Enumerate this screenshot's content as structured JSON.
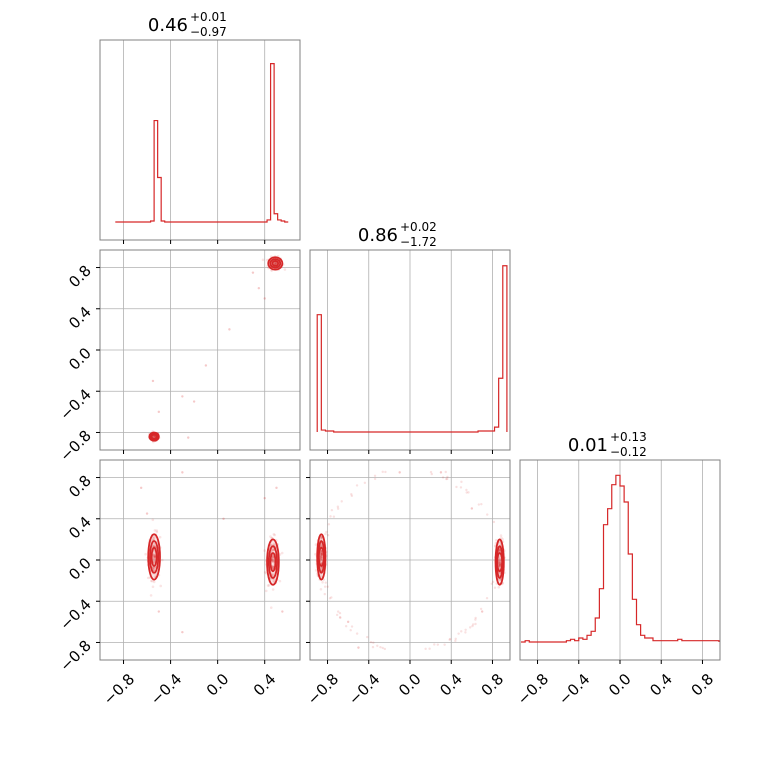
{
  "chart_data": {
    "type": "corner",
    "color": "#d62728",
    "grid": true,
    "panels": [
      {
        "kind": "histogram",
        "row": 0,
        "col": 0,
        "title": {
          "value": "0.46",
          "plus": "+0.01",
          "minus": "−0.97"
        },
        "xlim": [
          -1.0,
          0.7
        ],
        "bin_edges": [
          -0.87,
          -0.84,
          -0.81,
          -0.78,
          -0.75,
          -0.72,
          -0.69,
          -0.66,
          -0.63,
          -0.6,
          -0.57,
          -0.54,
          -0.51,
          -0.48,
          -0.45,
          -0.42,
          -0.39,
          -0.36,
          -0.33,
          -0.3,
          -0.27,
          -0.24,
          -0.21,
          -0.18,
          -0.15,
          -0.12,
          -0.09,
          -0.06,
          -0.03,
          0.0,
          0.03,
          0.06,
          0.09,
          0.12,
          0.15,
          0.18,
          0.21,
          0.24,
          0.27,
          0.3,
          0.33,
          0.36,
          0.39,
          0.42,
          0.45,
          0.48,
          0.51,
          0.54,
          0.57,
          0.6
        ],
        "counts": [
          0,
          0,
          0,
          0,
          0,
          0,
          0,
          0,
          0,
          0,
          1,
          98,
          43,
          1,
          0,
          0,
          0,
          0,
          0,
          0,
          0,
          0,
          0,
          0,
          0,
          0,
          0,
          0,
          0,
          0,
          0,
          0,
          0,
          0,
          0,
          0,
          0,
          0,
          0,
          0,
          0,
          0,
          0,
          2,
          153,
          8,
          2,
          1,
          0
        ],
        "ymax": 170
      },
      {
        "kind": "scatter",
        "row": 1,
        "col": 0,
        "xlim": [
          -1.0,
          0.7
        ],
        "ylim": [
          -0.97,
          0.97
        ],
        "clusters": [
          {
            "x": -0.54,
            "y": -0.84,
            "sx": 0.02,
            "sy": 0.02,
            "n": 90,
            "contour": true
          },
          {
            "x": 0.49,
            "y": 0.84,
            "sx": 0.03,
            "sy": 0.03,
            "n": 120,
            "contour": true
          }
        ],
        "outliers": [
          [
            -0.3,
            -0.45
          ],
          [
            -0.2,
            -0.5
          ],
          [
            0.1,
            0.2
          ],
          [
            -0.1,
            -0.15
          ],
          [
            -0.55,
            -0.3
          ],
          [
            0.4,
            0.5
          ],
          [
            0.35,
            0.6
          ],
          [
            -0.5,
            -0.6
          ],
          [
            0.3,
            0.75
          ],
          [
            -0.25,
            -0.85
          ]
        ]
      },
      {
        "kind": "histogram",
        "row": 1,
        "col": 1,
        "title": {
          "value": "0.86",
          "plus": "+0.02",
          "minus": "−1.72"
        },
        "xlim": [
          -0.97,
          0.97
        ],
        "bin_edges": [
          -0.9,
          -0.86,
          -0.82,
          -0.78,
          -0.74,
          -0.7,
          -0.66,
          -0.62,
          -0.58,
          -0.54,
          -0.5,
          -0.46,
          -0.42,
          -0.38,
          -0.34,
          -0.3,
          -0.26,
          -0.22,
          -0.18,
          -0.14,
          -0.1,
          -0.06,
          -0.02,
          0.02,
          0.06,
          0.1,
          0.14,
          0.18,
          0.22,
          0.26,
          0.3,
          0.34,
          0.38,
          0.42,
          0.46,
          0.5,
          0.54,
          0.58,
          0.62,
          0.66,
          0.7,
          0.74,
          0.78,
          0.82,
          0.86,
          0.9,
          0.94
        ],
        "counts": [
          120,
          2,
          1,
          1,
          0,
          0,
          0,
          0,
          0,
          0,
          0,
          0,
          0,
          0,
          0,
          0,
          0,
          0,
          0,
          0,
          0,
          0,
          0,
          0,
          0,
          0,
          0,
          0,
          0,
          0,
          0,
          0,
          0,
          0,
          0,
          0,
          0,
          0,
          0,
          1,
          1,
          1,
          1,
          5,
          55,
          170
        ],
        "ymax": 180
      },
      {
        "kind": "scatter",
        "row": 2,
        "col": 0,
        "xlim": [
          -1.0,
          0.7
        ],
        "ylim": [
          -0.97,
          0.97
        ],
        "clusters": [
          {
            "x": -0.54,
            "y": 0.03,
            "sx": 0.025,
            "sy": 0.11,
            "n": 170,
            "contour": true
          },
          {
            "x": 0.47,
            "y": -0.02,
            "sx": 0.025,
            "sy": 0.11,
            "n": 170,
            "contour": true
          }
        ],
        "outliers": [
          [
            -0.3,
            0.85
          ],
          [
            -0.6,
            0.45
          ],
          [
            0.5,
            0.7
          ],
          [
            0.4,
            0.6
          ],
          [
            -0.5,
            -0.5
          ],
          [
            -0.3,
            -0.7
          ],
          [
            0.05,
            0.4
          ],
          [
            -0.65,
            0.7
          ],
          [
            0.55,
            -0.5
          ]
        ]
      },
      {
        "kind": "scatter",
        "row": 2,
        "col": 1,
        "xlim": [
          -0.97,
          0.97
        ],
        "ylim": [
          -0.97,
          0.97
        ],
        "clusters": [
          {
            "x": -0.86,
            "y": 0.03,
            "sx": 0.02,
            "sy": 0.11,
            "n": 170,
            "contour": true
          },
          {
            "x": 0.87,
            "y": -0.02,
            "sx": 0.02,
            "sy": 0.11,
            "n": 170,
            "contour": true
          }
        ],
        "arcs": [
          {
            "cx": 0.0,
            "cy": 0.0,
            "r": 0.88,
            "from": 100,
            "to": 260,
            "n": 50
          },
          {
            "cx": 0.0,
            "cy": 0.0,
            "r": 0.88,
            "from": -80,
            "to": 80,
            "n": 50
          }
        ],
        "outliers": [
          [
            -0.1,
            0.85
          ],
          [
            0.3,
            0.85
          ],
          [
            0.6,
            0.5
          ],
          [
            -0.5,
            -0.85
          ],
          [
            -0.6,
            -0.6
          ],
          [
            0.7,
            -0.5
          ]
        ]
      },
      {
        "kind": "histogram",
        "row": 2,
        "col": 2,
        "title": {
          "value": "0.01",
          "plus": "+0.13",
          "minus": "−0.12"
        },
        "xlim": [
          -0.97,
          0.97
        ],
        "bin_edges": [
          -0.96,
          -0.92,
          -0.88,
          -0.84,
          -0.8,
          -0.76,
          -0.72,
          -0.68,
          -0.64,
          -0.6,
          -0.56,
          -0.52,
          -0.48,
          -0.44,
          -0.4,
          -0.36,
          -0.32,
          -0.28,
          -0.24,
          -0.2,
          -0.16,
          -0.12,
          -0.08,
          -0.04,
          0.0,
          0.04,
          0.08,
          0.12,
          0.16,
          0.2,
          0.24,
          0.28,
          0.32,
          0.36,
          0.4,
          0.44,
          0.48,
          0.52,
          0.56,
          0.6,
          0.64,
          0.68,
          0.72,
          0.76,
          0.8,
          0.84,
          0.88,
          0.92,
          0.96
        ],
        "counts": [
          0,
          1,
          0,
          0,
          0,
          0,
          0,
          0,
          0,
          0,
          0,
          1,
          2,
          1,
          3,
          2,
          5,
          8,
          18,
          40,
          88,
          100,
          118,
          125,
          117,
          105,
          66,
          32,
          13,
          5,
          3,
          3,
          1,
          1,
          1,
          1,
          1,
          1,
          2,
          1,
          1,
          1,
          1,
          1,
          1,
          1,
          1,
          1
        ],
        "ymax": 132
      }
    ],
    "axes": {
      "bottom_row_xticks": [
        [
          "−0.8",
          "−0.4",
          "0.0",
          "0.4"
        ],
        [
          "−0.8",
          "−0.4",
          "0.0",
          "0.4",
          "0.8"
        ],
        [
          "−0.8",
          "−0.4",
          "0.0",
          "0.4",
          "0.8"
        ]
      ],
      "bottom_row_xtick_values": [
        [
          -0.8,
          -0.4,
          0.0,
          0.4
        ],
        [
          -0.8,
          -0.4,
          0.0,
          0.4,
          0.8
        ],
        [
          -0.8,
          -0.4,
          0.0,
          0.4,
          0.8
        ]
      ],
      "left_col_yticks": [
        [],
        [
          "−0.8",
          "−0.4",
          "0.0",
          "0.4",
          "0.8"
        ],
        [
          "−0.8",
          "−0.4",
          "0.0",
          "0.4",
          "0.8"
        ]
      ],
      "left_col_ytick_values": [
        [],
        [
          -0.8,
          -0.4,
          0.0,
          0.4,
          0.8
        ],
        [
          -0.8,
          -0.4,
          0.0,
          0.4,
          0.8
        ]
      ]
    }
  }
}
